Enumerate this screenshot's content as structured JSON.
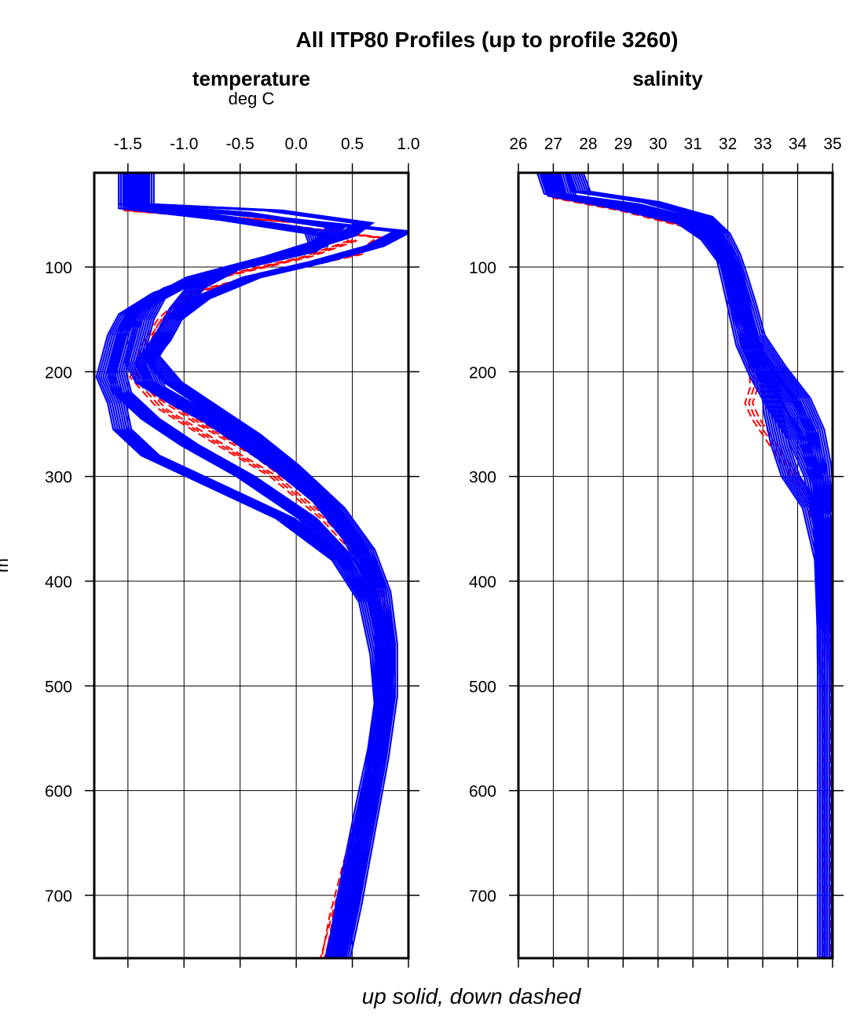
{
  "chart_data": {
    "title": "All ITP80 Profiles (up to profile 3260)",
    "caption": "up solid, down dashed",
    "ylabel": "m",
    "ylim": [
      10,
      760
    ],
    "yticks": [
      100,
      200,
      300,
      400,
      500,
      600,
      700
    ],
    "grid": true,
    "colors": {
      "up": "#0000ff",
      "down": "#ff0000",
      "grid": "#000000"
    },
    "legend": {
      "up": "solid",
      "down": "dashed"
    },
    "panels": [
      {
        "type": "line",
        "name": "temperature",
        "title": "temperature",
        "units": "deg C",
        "xlim": [
          -1.8,
          1.0
        ],
        "xticks": [
          -1.5,
          -1.0,
          -0.5,
          0.0,
          0.5,
          1.0
        ],
        "xtick_labels": [
          "-1.5",
          "-1.0",
          "-0.5",
          "0.0",
          "0.5",
          "1.0"
        ],
        "series": [
          {
            "cast": "up",
            "depth": [
              10,
              40,
              48,
              62,
              75,
              90,
              110,
              130,
              150,
              170,
              190,
              210,
              230,
              250,
              280,
              320,
              360,
              400,
              450,
              500,
              560,
              620,
              700,
              760
            ],
            "values": [
              -1.5,
              -1.5,
              -0.5,
              0.35,
              0.25,
              -0.2,
              -0.9,
              -1.25,
              -1.35,
              -1.4,
              -1.45,
              -1.35,
              -1.05,
              -0.7,
              -0.25,
              0.2,
              0.5,
              0.7,
              0.78,
              0.8,
              0.72,
              0.6,
              0.45,
              0.35
            ]
          },
          {
            "cast": "up",
            "depth": [
              10,
              40,
              46,
              58,
              70,
              85,
              100,
              120,
              140,
              160,
              185,
              210,
              235,
              260,
              290,
              330,
              370,
              410,
              460,
              510,
              570,
              640,
              710,
              760
            ],
            "values": [
              -1.35,
              -1.35,
              -0.2,
              0.6,
              0.45,
              0.0,
              -0.55,
              -0.9,
              -1.05,
              -1.15,
              -1.3,
              -1.1,
              -0.75,
              -0.4,
              -0.05,
              0.35,
              0.62,
              0.76,
              0.82,
              0.82,
              0.74,
              0.62,
              0.5,
              0.4
            ]
          },
          {
            "cast": "up",
            "depth": [
              10,
              42,
              50,
              65,
              80,
              100,
              120,
              140,
              160,
              180,
              200,
              220,
              245,
              270,
              300,
              340,
              380,
              420,
              470,
              520,
              580,
              650,
              720,
              760
            ],
            "values": [
              -1.45,
              -1.45,
              -0.8,
              0.15,
              0.2,
              -0.55,
              -1.1,
              -1.4,
              -1.5,
              -1.55,
              -1.6,
              -1.55,
              -1.3,
              -0.95,
              -0.45,
              0.1,
              0.45,
              0.66,
              0.76,
              0.78,
              0.7,
              0.58,
              0.44,
              0.36
            ]
          },
          {
            "cast": "up",
            "depth": [
              10,
              40,
              52,
              66,
              80,
              95,
              110,
              130,
              150,
              170,
              190,
              215,
              240,
              265,
              295,
              330,
              370,
              410,
              460,
              510,
              570,
              640,
              710,
              760
            ],
            "values": [
              -1.4,
              -1.4,
              -0.3,
              0.95,
              0.7,
              0.2,
              -0.4,
              -0.85,
              -1.1,
              -1.2,
              -1.35,
              -1.25,
              -0.85,
              -0.5,
              -0.1,
              0.3,
              0.58,
              0.74,
              0.8,
              0.8,
              0.72,
              0.6,
              0.47,
              0.38
            ]
          },
          {
            "cast": "up",
            "depth": [
              10,
              44,
              55,
              70,
              85,
              105,
              125,
              145,
              165,
              185,
              205,
              230,
              255,
              280,
              305,
              340,
              380,
              420,
              470,
              520,
              580,
              650,
              720,
              760
            ],
            "values": [
              -1.5,
              -1.5,
              -0.6,
              0.3,
              0.1,
              -0.7,
              -1.2,
              -1.5,
              -1.6,
              -1.65,
              -1.7,
              -1.6,
              -1.55,
              -1.3,
              -0.8,
              -0.1,
              0.4,
              0.64,
              0.74,
              0.78,
              0.7,
              0.56,
              0.43,
              0.34
            ]
          }
        ],
        "down_series": [
          {
            "cast": "down",
            "depth": [
              10,
              46,
              56,
              72,
              88,
              105,
              125,
              150,
              175,
              200,
              225,
              250,
              280,
              320,
              360,
              400,
              460,
              520,
              580,
              650,
              720,
              760
            ],
            "values": [
              -1.5,
              -1.5,
              -0.4,
              0.75,
              0.55,
              -0.2,
              -0.95,
              -1.2,
              -1.35,
              -1.4,
              -1.2,
              -0.85,
              -0.35,
              0.15,
              0.48,
              0.72,
              0.8,
              0.8,
              0.68,
              0.5,
              0.33,
              0.26
            ]
          },
          {
            "cast": "down",
            "depth": [
              10,
              45,
              60,
              75,
              90,
              110,
              130,
              155,
              180,
              205,
              235,
              265,
              300,
              340,
              380,
              430,
              490,
              550,
              610,
              680,
              740,
              760
            ],
            "values": [
              -1.45,
              -1.45,
              0.3,
              0.5,
              0.1,
              -0.7,
              -1.0,
              -1.2,
              -1.3,
              -1.45,
              -1.2,
              -0.75,
              -0.2,
              0.25,
              0.6,
              0.78,
              0.82,
              0.76,
              0.62,
              0.45,
              0.3,
              0.25
            ]
          }
        ]
      },
      {
        "type": "line",
        "name": "salinity",
        "title": "salinity",
        "units": "",
        "xlim": [
          26,
          35
        ],
        "xticks": [
          26,
          27,
          28,
          29,
          30,
          31,
          32,
          33,
          34,
          35
        ],
        "xtick_labels": [
          "26",
          "27",
          "28",
          "29",
          "30",
          "31",
          "32",
          "33",
          "34",
          "35"
        ],
        "series": [
          {
            "cast": "up",
            "depth": [
              10,
              30,
              40,
              55,
              70,
              90,
              110,
              140,
              170,
              200,
              230,
              260,
              300,
              340,
              400,
              500,
              600,
              700,
              760
            ],
            "values": [
              26.8,
              27.0,
              29.2,
              31.0,
              31.6,
              32.0,
              32.2,
              32.4,
              32.6,
              33.1,
              33.8,
              34.3,
              34.6,
              34.75,
              34.82,
              34.84,
              34.84,
              34.84,
              34.84
            ]
          },
          {
            "cast": "up",
            "depth": [
              10,
              28,
              38,
              52,
              68,
              88,
              108,
              135,
              165,
              195,
              225,
              255,
              290,
              330,
              390,
              480,
              580,
              700,
              760
            ],
            "values": [
              27.6,
              27.8,
              29.8,
              31.3,
              31.8,
              32.1,
              32.3,
              32.55,
              32.8,
              33.4,
              34.1,
              34.5,
              34.7,
              34.8,
              34.83,
              34.84,
              34.84,
              34.84,
              34.84
            ]
          },
          {
            "cast": "up",
            "depth": [
              10,
              32,
              44,
              58,
              74,
              94,
              115,
              145,
              175,
              205,
              235,
              265,
              300,
              345,
              405,
              500,
              600,
              700,
              760
            ],
            "values": [
              26.9,
              27.1,
              29.0,
              30.8,
              31.5,
              31.95,
              32.1,
              32.3,
              32.5,
              32.9,
              33.4,
              34.0,
              34.45,
              34.72,
              34.81,
              34.84,
              34.84,
              34.84,
              34.84
            ]
          },
          {
            "cast": "up",
            "depth": [
              10,
              33,
              45,
              60,
              78,
              98,
              120,
              150,
              180,
              210,
              240,
              270,
              300,
              330,
              380,
              450,
              550,
              650,
              760
            ],
            "values": [
              27.2,
              27.4,
              29.4,
              31.1,
              31.7,
              32.05,
              32.25,
              32.45,
              32.7,
              33.2,
              33.3,
              33.5,
              33.8,
              34.4,
              34.75,
              34.83,
              34.84,
              34.84,
              34.84
            ]
          }
        ],
        "down_series": [
          {
            "cast": "down",
            "depth": [
              10,
              34,
              46,
              62,
              80,
              100,
              125,
              155,
              185,
              215,
              230,
              245,
              260,
              290,
              320,
              360,
              420,
              520,
              640,
              760
            ],
            "values": [
              26.9,
              27.1,
              29.0,
              30.9,
              31.6,
              32.0,
              32.2,
              32.4,
              32.7,
              32.75,
              32.6,
              32.8,
              33.1,
              33.7,
              34.3,
              34.7,
              34.82,
              34.84,
              34.84,
              34.84
            ]
          }
        ]
      }
    ]
  }
}
